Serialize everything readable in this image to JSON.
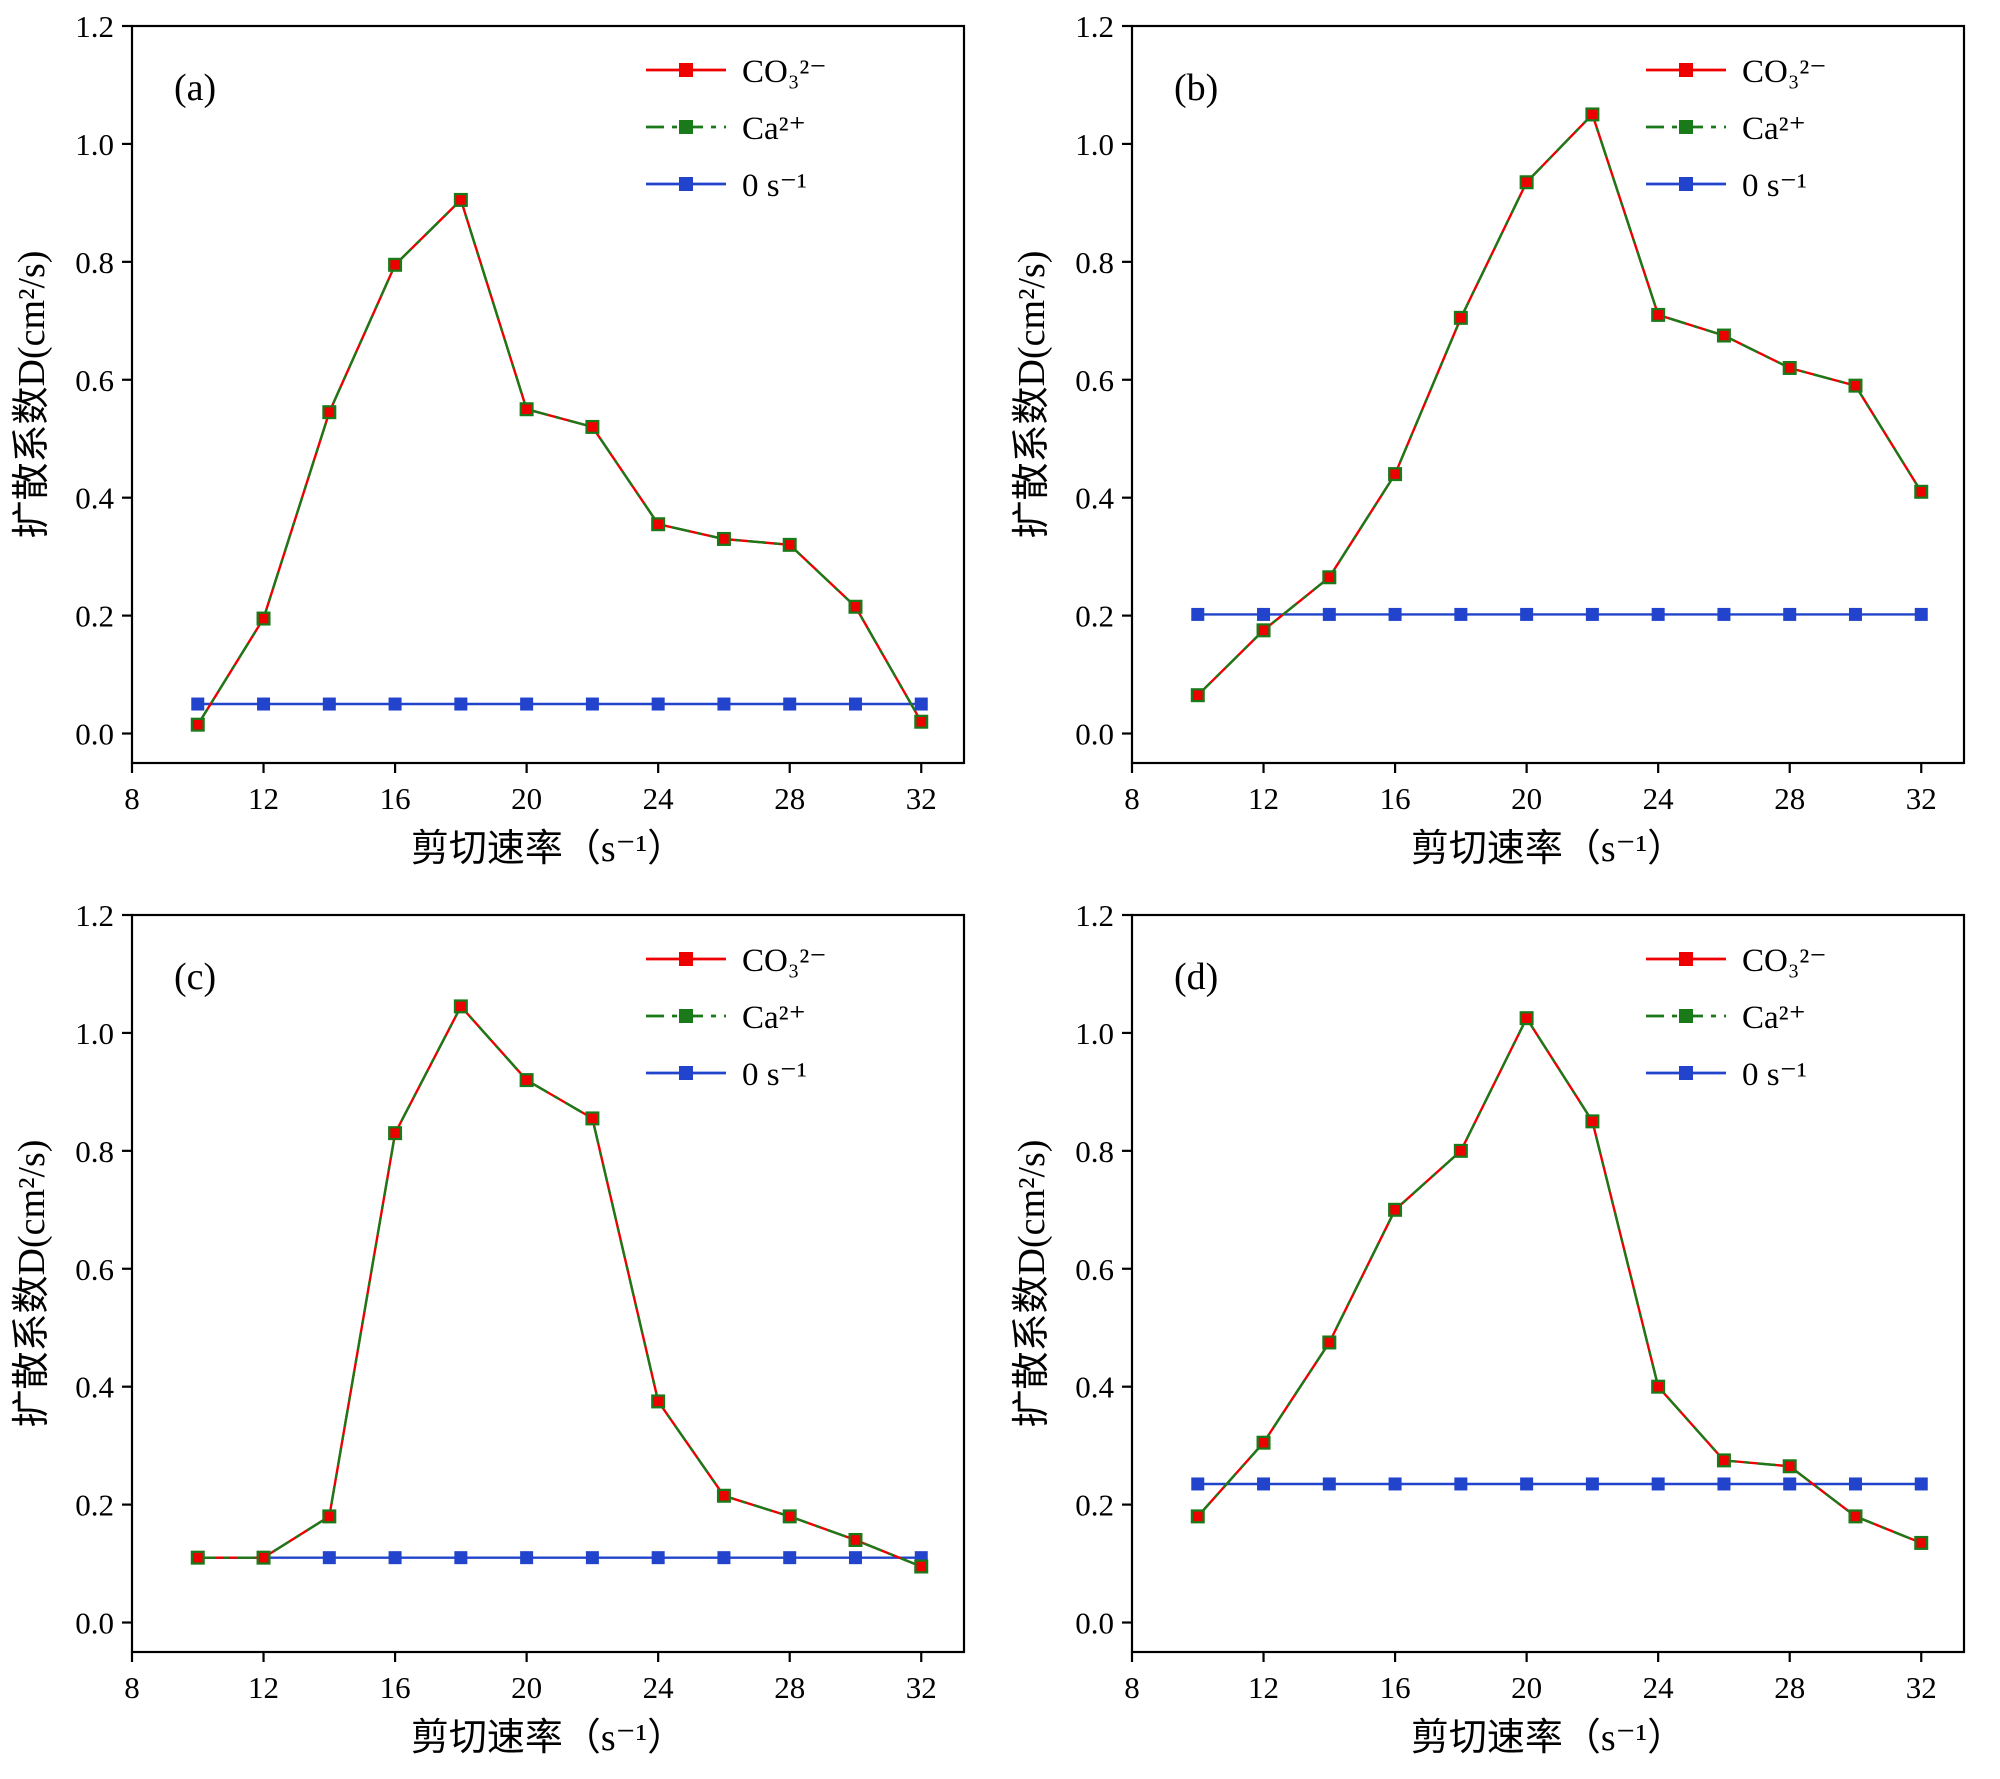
{
  "figure_title": "",
  "chart_data": [
    {
      "type": "line",
      "panel_label": "(a)",
      "xlabel": "剪切速率（s⁻¹）",
      "ylabel": "扩散系数D(cm²/s)",
      "x": [
        10,
        12,
        14,
        16,
        18,
        20,
        22,
        24,
        26,
        28,
        30,
        32
      ],
      "xlim": [
        8,
        33.3
      ],
      "ylim": [
        -0.05,
        1.2
      ],
      "xticks": [
        8,
        12,
        16,
        20,
        24,
        28,
        32
      ],
      "yticks": [
        0.0,
        0.2,
        0.4,
        0.6,
        0.8,
        1.0,
        1.2
      ],
      "legend_position": "top-right",
      "grid": false,
      "series": [
        {
          "name": "CO₃²⁻",
          "color": "#ee0000",
          "line": "solid",
          "values": [
            0.015,
            0.195,
            0.545,
            0.795,
            0.905,
            0.55,
            0.52,
            0.355,
            0.33,
            0.32,
            0.215,
            0.02
          ]
        },
        {
          "name": "Ca²⁺",
          "color": "#1a7a1a",
          "line": "dashdot",
          "values": [
            0.015,
            0.195,
            0.545,
            0.795,
            0.905,
            0.55,
            0.52,
            0.355,
            0.33,
            0.32,
            0.215,
            0.02
          ]
        },
        {
          "name": "0 s⁻¹",
          "color": "#2244cc",
          "line": "solid",
          "values": [
            0.05,
            0.05,
            0.05,
            0.05,
            0.05,
            0.05,
            0.05,
            0.05,
            0.05,
            0.05,
            0.05,
            0.05
          ]
        }
      ]
    },
    {
      "type": "line",
      "panel_label": "(b)",
      "xlabel": "剪切速率（s⁻¹）",
      "ylabel": "扩散系数D(cm²/s)",
      "x": [
        10,
        12,
        14,
        16,
        18,
        20,
        22,
        24,
        26,
        28,
        30,
        32
      ],
      "xlim": [
        8,
        33.3
      ],
      "ylim": [
        -0.05,
        1.2
      ],
      "xticks": [
        8,
        12,
        16,
        20,
        24,
        28,
        32
      ],
      "yticks": [
        0.0,
        0.2,
        0.4,
        0.6,
        0.8,
        1.0,
        1.2
      ],
      "legend_position": "top-right",
      "grid": false,
      "series": [
        {
          "name": "CO₃²⁻",
          "color": "#ee0000",
          "line": "solid",
          "values": [
            0.065,
            0.175,
            0.265,
            0.44,
            0.705,
            0.935,
            1.05,
            0.71,
            0.675,
            0.62,
            0.59,
            0.41
          ]
        },
        {
          "name": "Ca²⁺",
          "color": "#1a7a1a",
          "line": "dashdot",
          "values": [
            0.065,
            0.175,
            0.265,
            0.44,
            0.705,
            0.935,
            1.05,
            0.71,
            0.675,
            0.62,
            0.59,
            0.41
          ]
        },
        {
          "name": "0 s⁻¹",
          "color": "#2244cc",
          "line": "solid",
          "values": [
            0.202,
            0.202,
            0.202,
            0.202,
            0.202,
            0.202,
            0.202,
            0.202,
            0.202,
            0.202,
            0.202,
            0.202
          ]
        }
      ]
    },
    {
      "type": "line",
      "panel_label": "(c)",
      "xlabel": "剪切速率（s⁻¹）",
      "ylabel": "扩散系数D(cm²/s)",
      "x": [
        10,
        12,
        14,
        16,
        18,
        20,
        22,
        24,
        26,
        28,
        30,
        32
      ],
      "xlim": [
        8,
        33.3
      ],
      "ylim": [
        -0.05,
        1.2
      ],
      "xticks": [
        8,
        12,
        16,
        20,
        24,
        28,
        32
      ],
      "yticks": [
        0.0,
        0.2,
        0.4,
        0.6,
        0.8,
        1.0,
        1.2
      ],
      "legend_position": "top-right",
      "grid": false,
      "series": [
        {
          "name": "CO₃²⁻",
          "color": "#ee0000",
          "line": "solid",
          "values": [
            0.11,
            0.11,
            0.18,
            0.83,
            1.045,
            0.92,
            0.855,
            0.375,
            0.215,
            0.18,
            0.14,
            0.095
          ]
        },
        {
          "name": "Ca²⁺",
          "color": "#1a7a1a",
          "line": "dashdot",
          "values": [
            0.11,
            0.11,
            0.18,
            0.83,
            1.045,
            0.92,
            0.855,
            0.375,
            0.215,
            0.18,
            0.14,
            0.095
          ]
        },
        {
          "name": "0 s⁻¹",
          "color": "#2244cc",
          "line": "solid",
          "values": [
            0.11,
            0.11,
            0.11,
            0.11,
            0.11,
            0.11,
            0.11,
            0.11,
            0.11,
            0.11,
            0.11,
            0.11
          ]
        }
      ]
    },
    {
      "type": "line",
      "panel_label": "(d)",
      "xlabel": "剪切速率（s⁻¹）",
      "ylabel": "扩散系数D(cm²/s)",
      "x": [
        10,
        12,
        14,
        16,
        18,
        20,
        22,
        24,
        26,
        28,
        30,
        32
      ],
      "xlim": [
        8,
        33.3
      ],
      "ylim": [
        -0.05,
        1.2
      ],
      "xticks": [
        8,
        12,
        16,
        20,
        24,
        28,
        32
      ],
      "yticks": [
        0.0,
        0.2,
        0.4,
        0.6,
        0.8,
        1.0,
        1.2
      ],
      "legend_position": "top-right",
      "grid": false,
      "series": [
        {
          "name": "CO₃²⁻",
          "color": "#ee0000",
          "line": "solid",
          "values": [
            0.18,
            0.305,
            0.475,
            0.7,
            0.8,
            1.025,
            0.85,
            0.4,
            0.275,
            0.265,
            0.18,
            0.135
          ]
        },
        {
          "name": "Ca²⁺",
          "color": "#1a7a1a",
          "line": "dashdot",
          "values": [
            0.18,
            0.305,
            0.475,
            0.7,
            0.8,
            1.025,
            0.85,
            0.4,
            0.275,
            0.265,
            0.18,
            0.135
          ]
        },
        {
          "name": "0 s⁻¹",
          "color": "#2244cc",
          "line": "solid",
          "values": [
            0.235,
            0.235,
            0.235,
            0.235,
            0.235,
            0.235,
            0.235,
            0.235,
            0.235,
            0.235,
            0.235,
            0.235
          ]
        }
      ]
    }
  ]
}
